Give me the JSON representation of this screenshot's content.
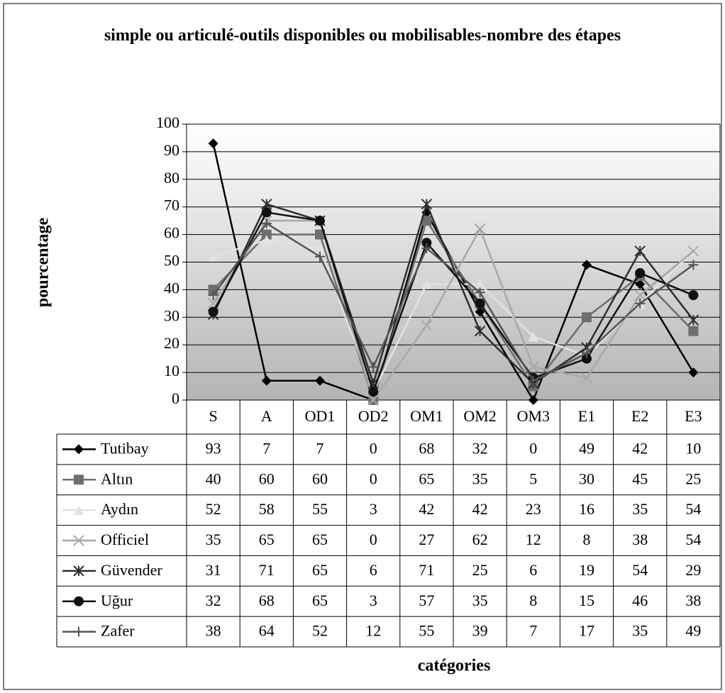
{
  "chart_data": {
    "type": "line",
    "title": "simple ou articulé-outils disponibles ou mobilisables-nombre des étapes",
    "y_label": "pourcentage",
    "x_label": "catégories",
    "categories": [
      "S",
      "A",
      "OD1",
      "OD2",
      "OM1",
      "OM2",
      "OM3",
      "E1",
      "E2",
      "E3"
    ],
    "ylim": [
      0,
      100
    ],
    "yticks": [
      0,
      10,
      20,
      30,
      40,
      50,
      60,
      70,
      80,
      90,
      100
    ],
    "grid": true,
    "series": [
      {
        "name": "Tutibay",
        "color": "#000000",
        "marker": "diamond",
        "values": [
          93,
          7,
          7,
          0,
          68,
          32,
          0,
          49,
          42,
          10
        ]
      },
      {
        "name": "Altın",
        "color": "#6e6e6e",
        "marker": "square",
        "values": [
          40,
          60,
          60,
          0,
          65,
          35,
          5,
          30,
          45,
          25
        ]
      },
      {
        "name": "Aydın",
        "color": "#e2e2e2",
        "marker": "triangle",
        "values": [
          52,
          58,
          55,
          3,
          42,
          42,
          23,
          16,
          35,
          54
        ]
      },
      {
        "name": "Officiel",
        "color": "#a8a8a8",
        "marker": "x",
        "values": [
          35,
          65,
          65,
          0,
          27,
          62,
          12,
          8,
          38,
          54
        ]
      },
      {
        "name": "Güvender",
        "color": "#2e2e2e",
        "marker": "star",
        "values": [
          31,
          71,
          65,
          6,
          71,
          25,
          6,
          19,
          54,
          29
        ]
      },
      {
        "name": "Uğur",
        "color": "#111111",
        "marker": "circle",
        "values": [
          32,
          68,
          65,
          3,
          57,
          35,
          8,
          15,
          46,
          38
        ]
      },
      {
        "name": "Zafer",
        "color": "#555555",
        "marker": "plus",
        "values": [
          38,
          64,
          52,
          12,
          55,
          39,
          7,
          17,
          35,
          49
        ]
      }
    ]
  }
}
